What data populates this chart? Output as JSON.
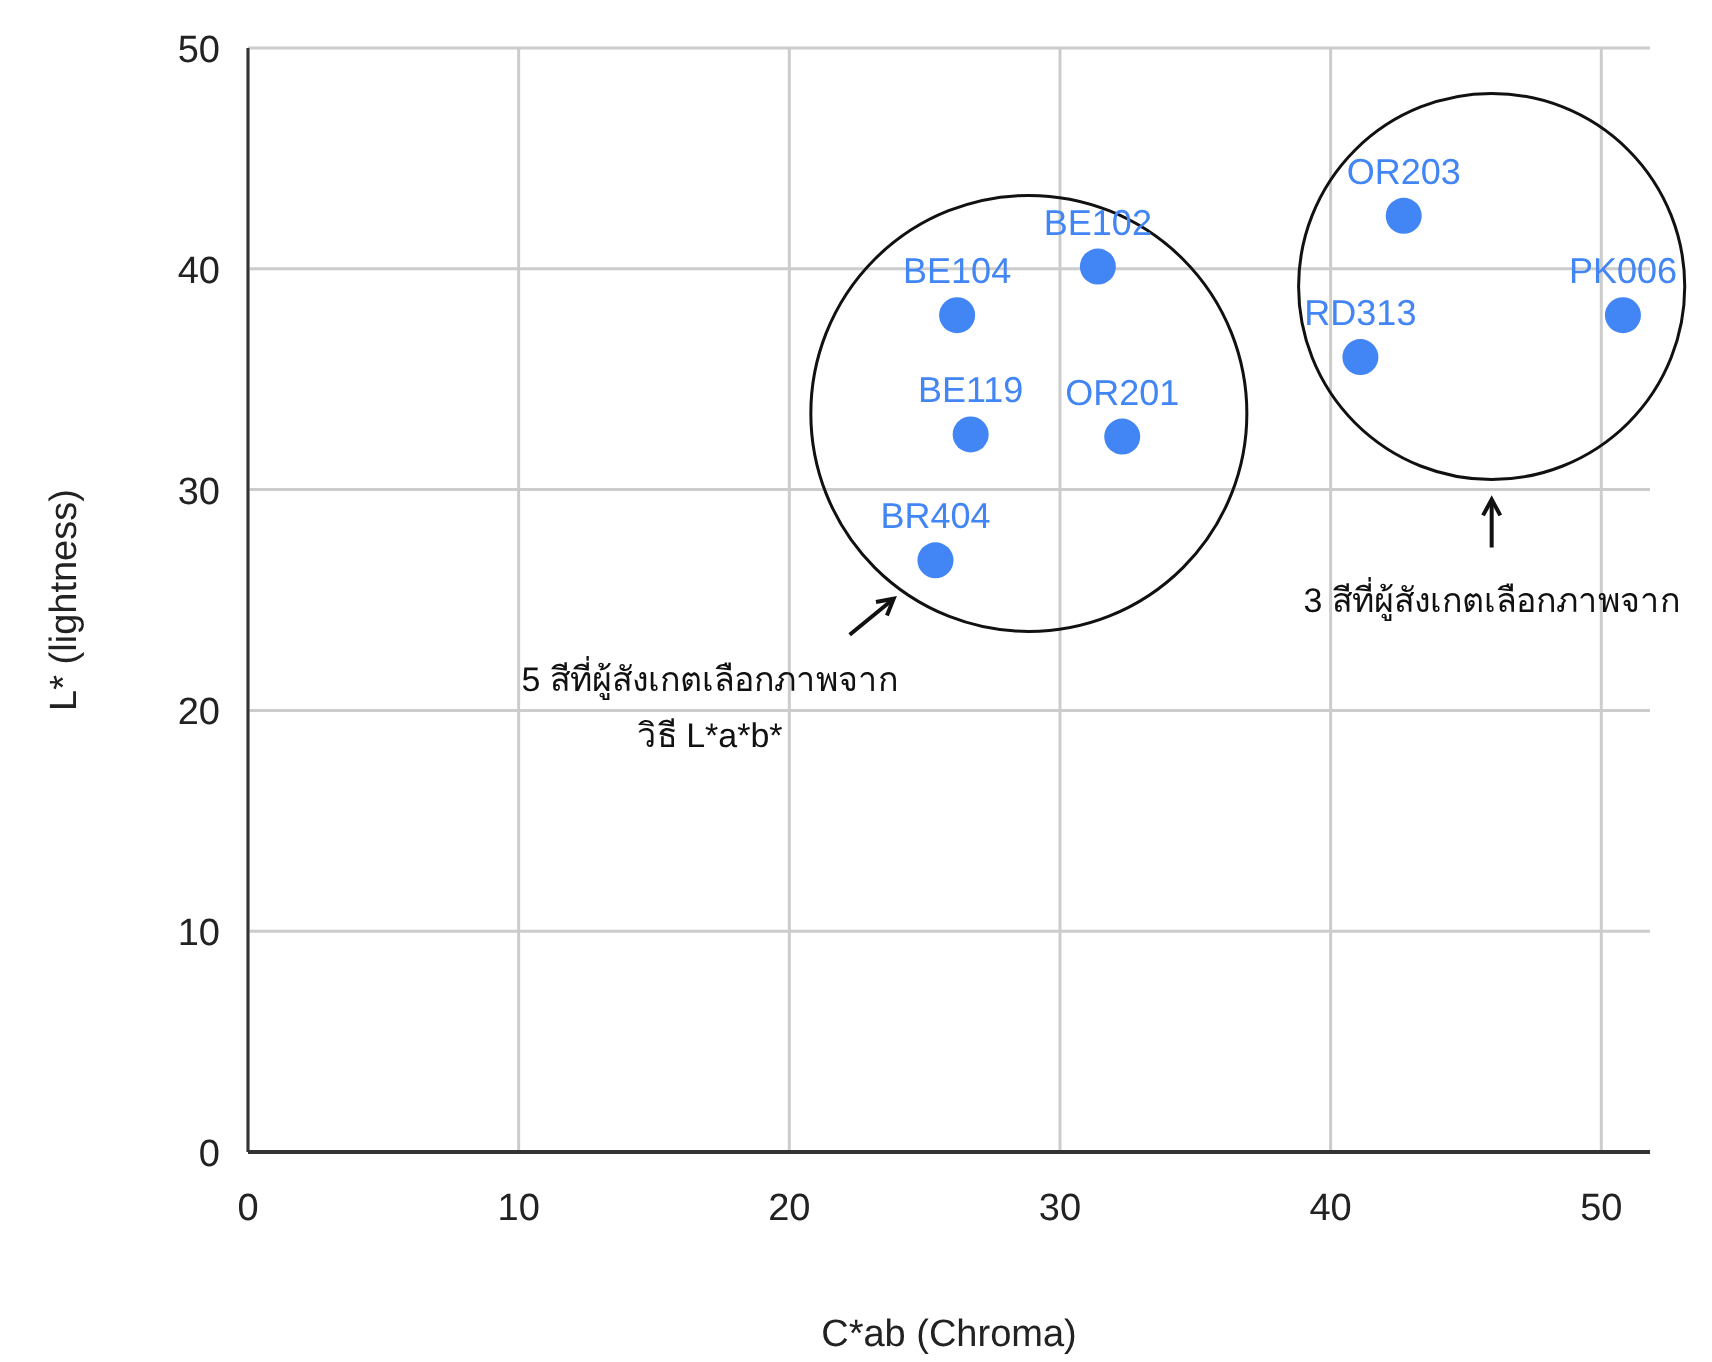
{
  "chart_data": {
    "type": "scatter",
    "xlabel": "C*ab (Chroma)",
    "ylabel": "L* (lightness)",
    "xlim": [
      0,
      51.8
    ],
    "ylim": [
      0,
      50
    ],
    "xticks": [
      0,
      10,
      20,
      30,
      40,
      50
    ],
    "yticks": [
      0,
      10,
      20,
      30,
      40,
      50
    ],
    "grid": true,
    "marker": "circle",
    "series": [
      {
        "name": "BE102",
        "color": "#4285f4",
        "x": [
          31.4
        ],
        "values": [
          40.1
        ]
      },
      {
        "name": "BE104",
        "color": "#4285f4",
        "x": [
          26.2
        ],
        "values": [
          37.9
        ]
      },
      {
        "name": "BE119",
        "color": "#4285f4",
        "x": [
          26.7
        ],
        "values": [
          32.5
        ]
      },
      {
        "name": "OR201",
        "color": "#4285f4",
        "x": [
          32.3
        ],
        "values": [
          32.4
        ]
      },
      {
        "name": "BR404",
        "color": "#4285f4",
        "x": [
          25.4
        ],
        "values": [
          26.8
        ]
      },
      {
        "name": "OR203",
        "color": "#4285f4",
        "x": [
          42.7
        ],
        "values": [
          42.4
        ]
      },
      {
        "name": "RD313",
        "color": "#4285f4",
        "x": [
          41.1
        ],
        "values": [
          36.0
        ]
      },
      {
        "name": "PK006",
        "color": "#4285f4",
        "x": [
          50.8
        ],
        "values": [
          37.9
        ]
      }
    ],
    "annotations": [
      "5 สีที่ผู้สังเกตเลือกภาพจาก\nวิธี L*a*b*",
      "3 สีที่ผู้สังเกตเลือกภาพจาก"
    ]
  }
}
